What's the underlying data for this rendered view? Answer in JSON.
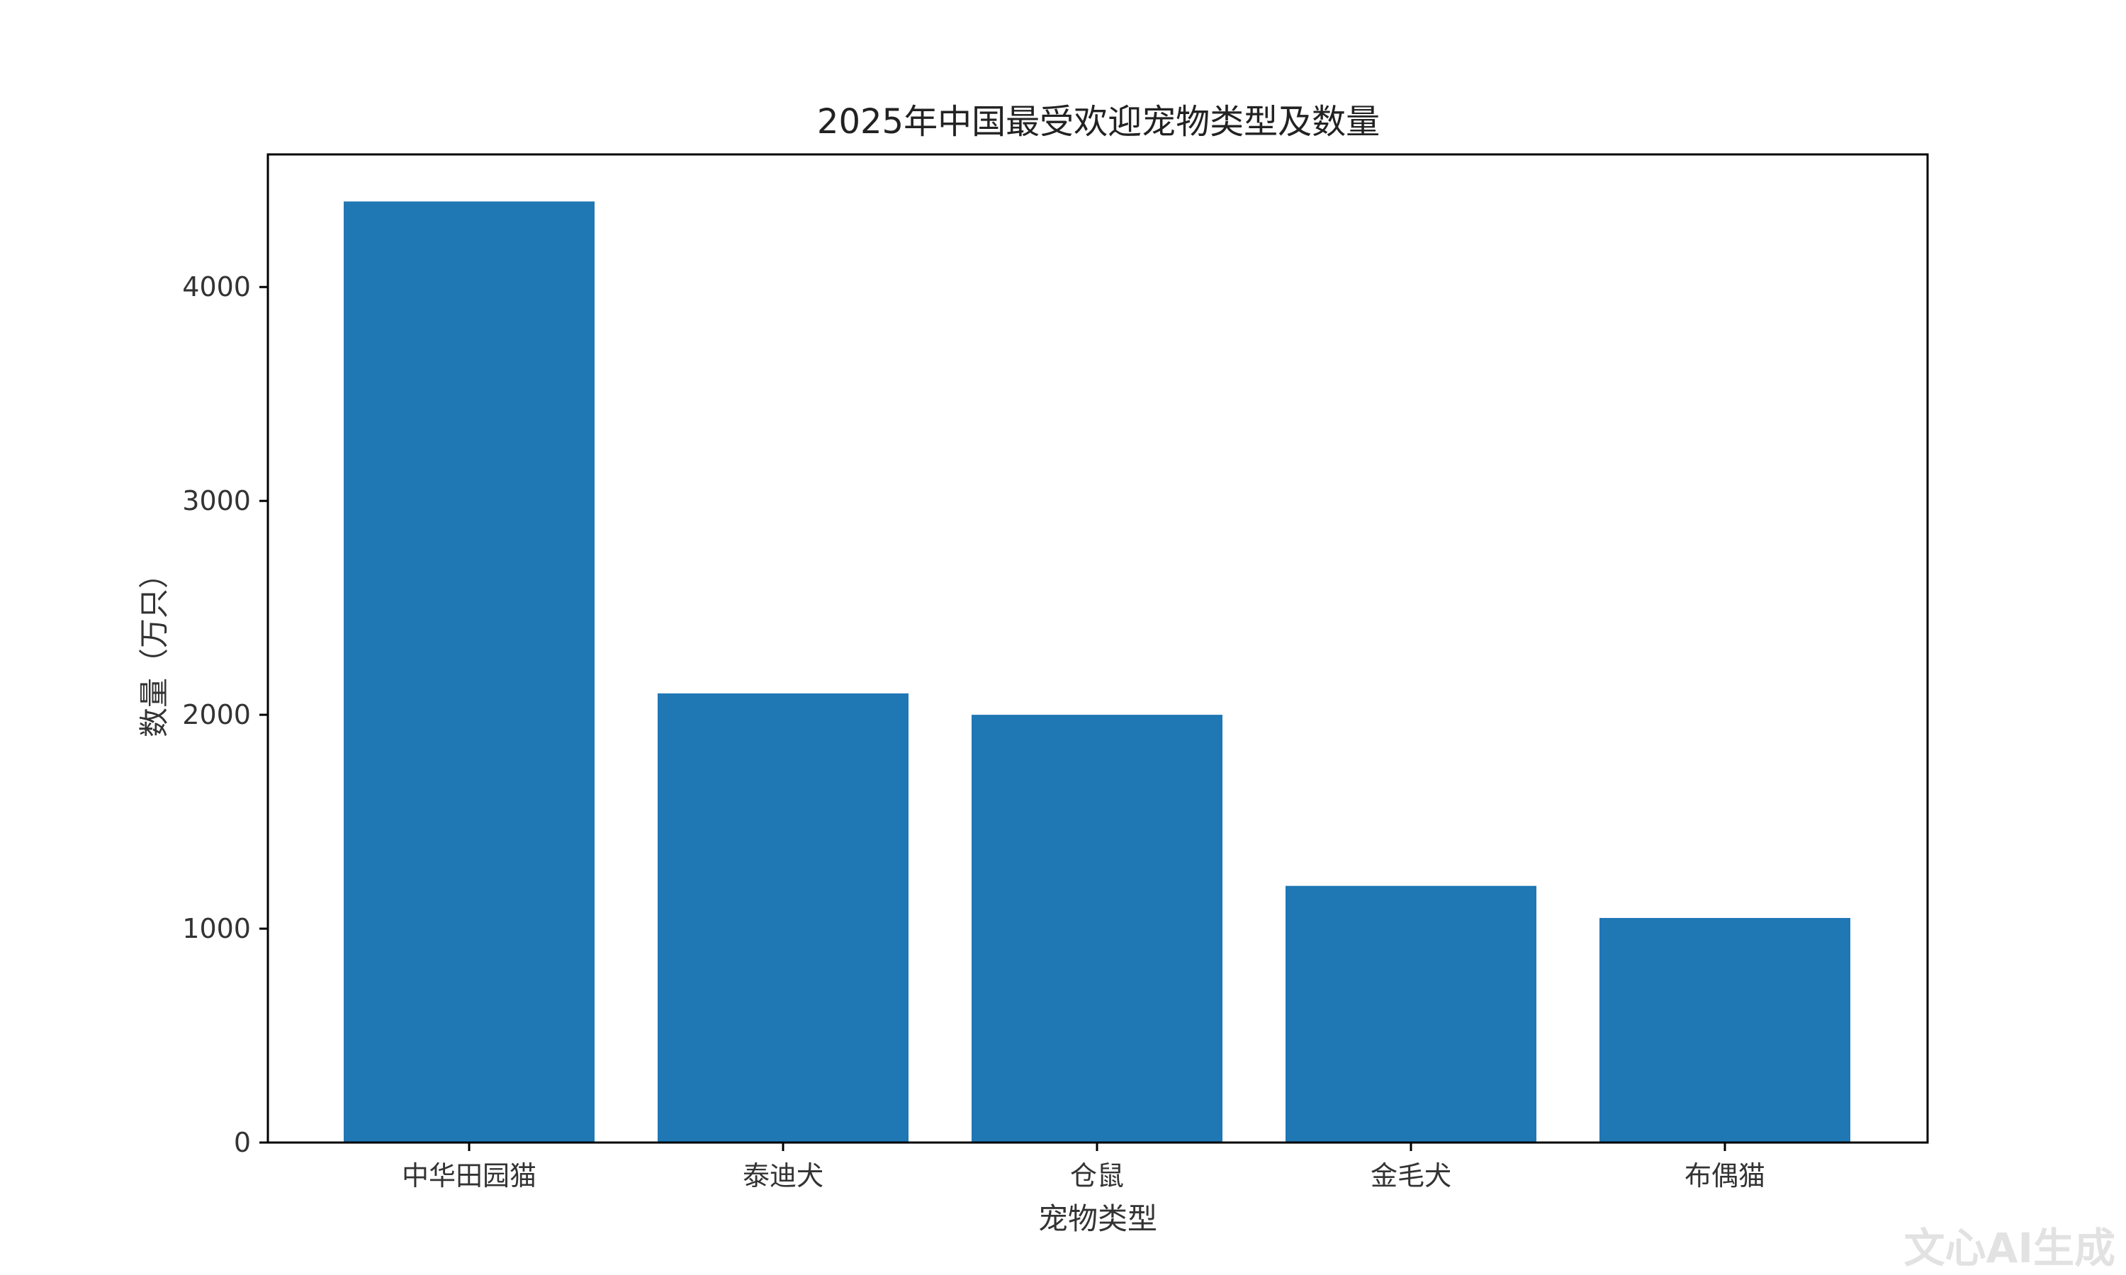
{
  "watermark": "文心AI生成",
  "chart_data": {
    "type": "bar",
    "title": "2025年中国最受欢迎宠物类型及数量",
    "xlabel": "宠物类型",
    "ylabel": "数量（万只）",
    "categories": [
      "中华田园猫",
      "泰迪犬",
      "仓鼠",
      "金毛犬",
      "布偶猫"
    ],
    "values": [
      4400,
      2100,
      2000,
      1200,
      1050
    ],
    "ylim": [
      0,
      4620
    ],
    "yticks": [
      0,
      1000,
      2000,
      3000,
      4000
    ],
    "bar_color": "#1f77b4",
    "grid": false,
    "legend": "none"
  }
}
